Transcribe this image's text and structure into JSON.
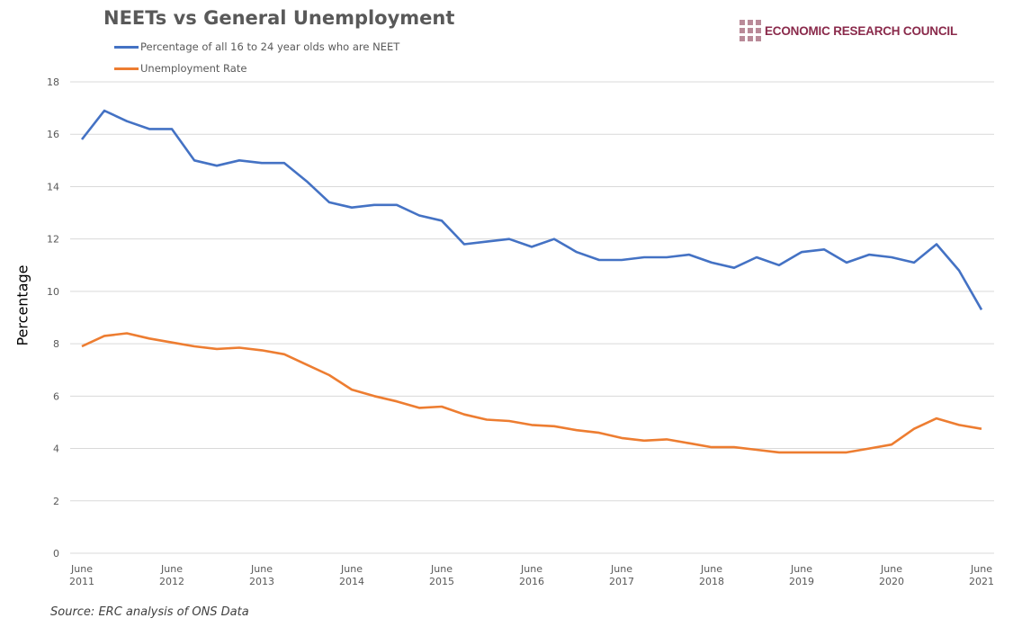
{
  "chart_data": {
    "type": "line",
    "title": "NEETs vs General Unemployment",
    "ylabel": "Percentage",
    "xlabel": "",
    "ylim": [
      0,
      18
    ],
    "yticks": [
      0,
      2,
      4,
      6,
      8,
      10,
      12,
      14,
      16,
      18
    ],
    "grid": true,
    "legend": "top-left",
    "x_tick_labels": [
      [
        "June",
        "2011"
      ],
      [
        "June",
        "2012"
      ],
      [
        "June",
        "2013"
      ],
      [
        "June",
        "2014"
      ],
      [
        "June",
        "2015"
      ],
      [
        "June",
        "2016"
      ],
      [
        "June",
        "2017"
      ],
      [
        "June",
        "2018"
      ],
      [
        "June",
        "2019"
      ],
      [
        "June",
        "2020"
      ],
      [
        "June",
        "2021"
      ]
    ],
    "x_start": "June 2011",
    "x_end": "June 2021",
    "x_frequency": "quarterly",
    "series": [
      {
        "name": "Percentage of all 16 to 24 year olds who are NEET",
        "color": "#4472C4",
        "values": [
          15.8,
          16.9,
          16.5,
          16.2,
          16.2,
          15.0,
          14.8,
          15.0,
          14.9,
          14.9,
          14.2,
          13.4,
          13.2,
          13.3,
          13.3,
          12.9,
          12.7,
          11.8,
          11.9,
          12.0,
          11.7,
          12.0,
          11.5,
          11.2,
          11.2,
          11.3,
          11.3,
          11.4,
          11.1,
          10.9,
          11.3,
          11.0,
          11.5,
          11.6,
          11.1,
          11.4,
          11.3,
          11.1,
          11.8,
          10.8,
          9.3
        ]
      },
      {
        "name": "Unemployment Rate",
        "color": "#ED7D31",
        "values": [
          7.9,
          8.3,
          8.4,
          8.2,
          8.05,
          7.9,
          7.8,
          7.85,
          7.75,
          7.6,
          7.2,
          6.8,
          6.25,
          6.0,
          5.8,
          5.55,
          5.6,
          5.3,
          5.1,
          5.05,
          4.9,
          4.85,
          4.7,
          4.6,
          4.4,
          4.3,
          4.35,
          4.2,
          4.05,
          4.05,
          3.95,
          3.85,
          3.85,
          3.85,
          3.85,
          4.0,
          4.15,
          4.75,
          5.15,
          4.9,
          4.75
        ]
      }
    ]
  },
  "logo": {
    "text": "ECONOMIC RESEARCH COUNCIL",
    "color": "#8a2a4b"
  },
  "source": "Source: ERC analysis of ONS Data"
}
